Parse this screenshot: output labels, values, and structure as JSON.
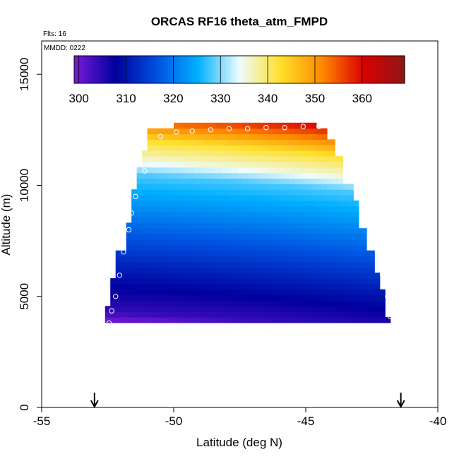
{
  "chart_data": {
    "type": "heatmap",
    "title": "ORCAS RF16 theta_atm_FMPD",
    "annotations": {
      "flights": "Flts: 16",
      "mmdd": "MMDD: 0222"
    },
    "xlabel": "Latitude (deg N)",
    "ylabel": "Altitude (m)",
    "xlim": [
      -55,
      -40
    ],
    "ylim": [
      0,
      16500
    ],
    "x_ticks": [
      -55,
      -50,
      -45,
      -40
    ],
    "x_tick_labels": [
      "-55",
      "-50",
      "-45",
      "-40"
    ],
    "y_ticks": [
      0,
      5000,
      10000,
      15000
    ],
    "y_tick_labels": [
      "0",
      "5000",
      "10000",
      "15000"
    ],
    "colorbar": {
      "min": 299,
      "max": 369,
      "ticks": [
        300,
        310,
        320,
        330,
        340,
        350,
        360
      ],
      "tick_labels": [
        "300",
        "310",
        "320",
        "330",
        "340",
        "350",
        "360"
      ],
      "colors": [
        "#7a1bd6",
        "#00009c",
        "#0050e0",
        "#00b0ff",
        "#eefcff",
        "#ffe02a",
        "#ff8a00",
        "#dc0000",
        "#8c1818"
      ]
    },
    "arrows_at_latitude": [
      -53.0,
      -41.4
    ],
    "profile_points": [
      {
        "lat": -52.45,
        "alt": 3800
      },
      {
        "lat": -52.35,
        "alt": 4350
      },
      {
        "lat": -52.2,
        "alt": 5000
      },
      {
        "lat": -52.05,
        "alt": 5950
      },
      {
        "lat": -51.9,
        "alt": 7000
      },
      {
        "lat": -51.7,
        "alt": 8000
      },
      {
        "lat": -51.6,
        "alt": 8750
      },
      {
        "lat": -51.45,
        "alt": 9500
      },
      {
        "lat": -51.1,
        "alt": 10650
      },
      {
        "lat": -50.5,
        "alt": 12200
      },
      {
        "lat": -49.9,
        "alt": 12400
      },
      {
        "lat": -49.3,
        "alt": 12450
      },
      {
        "lat": -48.6,
        "alt": 12500
      },
      {
        "lat": -47.9,
        "alt": 12550
      },
      {
        "lat": -47.2,
        "alt": 12550
      },
      {
        "lat": -46.5,
        "alt": 12600
      },
      {
        "lat": -45.8,
        "alt": 12600
      },
      {
        "lat": -45.1,
        "alt": 12650
      },
      {
        "lat": -44.5,
        "alt": 12650
      },
      {
        "lat": -44.0,
        "alt": 12300
      },
      {
        "lat": -43.1,
        "alt": 9800
      },
      {
        "lat": -42.9,
        "alt": 9100
      },
      {
        "lat": -42.5,
        "alt": 8000
      },
      {
        "lat": -42.2,
        "alt": 6950
      },
      {
        "lat": -42.1,
        "alt": 6000
      },
      {
        "lat": -41.9,
        "alt": 5000
      },
      {
        "lat": -41.8,
        "alt": 4100
      }
    ],
    "field_left_edge": [
      [
        3800,
        -52.6
      ],
      [
        4300,
        -52.6
      ],
      [
        4500,
        -52.4
      ],
      [
        5600,
        -52.4
      ],
      [
        5800,
        -52.2
      ],
      [
        6800,
        -52.2
      ],
      [
        7000,
        -51.8
      ],
      [
        8100,
        -51.8
      ],
      [
        8300,
        -51.6
      ],
      [
        9500,
        -51.6
      ],
      [
        9800,
        -51.4
      ],
      [
        10700,
        -51.4
      ],
      [
        10800,
        -51.2
      ],
      [
        11300,
        -51.2
      ],
      [
        11500,
        -51.0
      ],
      [
        12200,
        -51.0
      ],
      [
        12400,
        -50.0
      ],
      [
        12550,
        -50.0
      ],
      [
        12700,
        -48.0
      ]
    ],
    "field_right_edge": [
      [
        12700,
        -44.6
      ],
      [
        12500,
        -44.2
      ],
      [
        12000,
        -43.9
      ],
      [
        11200,
        -43.6
      ],
      [
        10000,
        -43.2
      ],
      [
        9200,
        -43.0
      ],
      [
        8000,
        -42.7
      ],
      [
        7000,
        -42.4
      ],
      [
        6000,
        -42.2
      ],
      [
        5200,
        -42.0
      ],
      [
        3900,
        -41.8
      ]
    ],
    "field_top_altitude": 12700,
    "field_bottom_altitude": 3800
  }
}
